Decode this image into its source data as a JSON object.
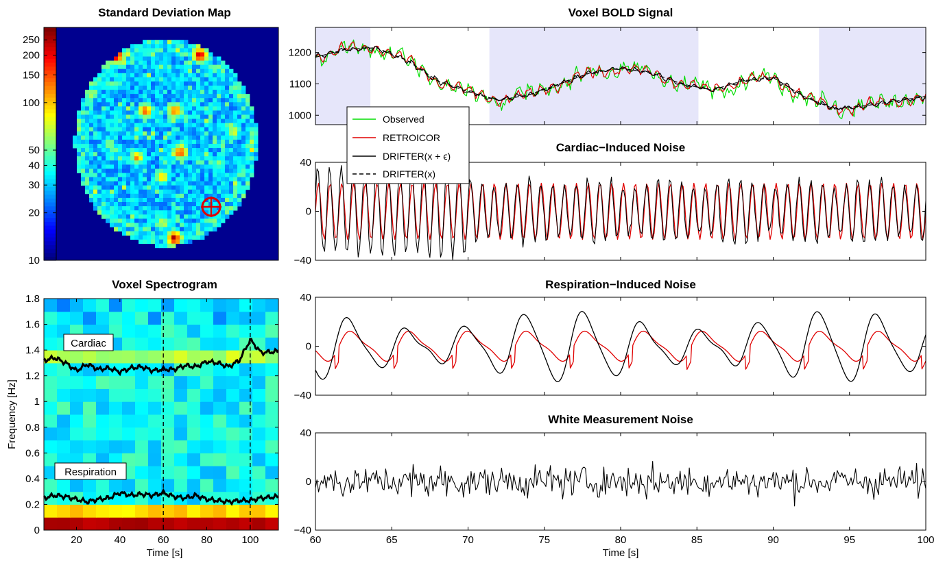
{
  "chart_data": [
    {
      "id": "stdmap",
      "type": "heatmap",
      "title": "Standard Deviation Map",
      "colorbar": {
        "scale": "log",
        "ticks": [
          10,
          20,
          30,
          40,
          50,
          100,
          150,
          200,
          250
        ],
        "range": [
          10,
          300
        ]
      },
      "marker": "circle-crosshair",
      "colors": {
        "background": "#00008f",
        "marker": "#e00000"
      }
    },
    {
      "id": "spectro",
      "type": "heatmap",
      "title": "Voxel Spectrogram",
      "xlabel": "Time [s]",
      "ylabel": "Frequency [Hz]",
      "xlim": [
        5,
        113
      ],
      "ylim": [
        0,
        1.8
      ],
      "xticks": [
        20,
        40,
        60,
        80,
        100
      ],
      "yticks": [
        0,
        0.2,
        0.4,
        0.6,
        0.8,
        1,
        1.2,
        1.4,
        1.6,
        1.8
      ],
      "vlines": [
        60,
        100
      ],
      "annotations": [
        "Cardiac",
        "Respiration"
      ],
      "cardiac_track": {
        "x": [
          5,
          10,
          15,
          20,
          25,
          30,
          35,
          40,
          45,
          50,
          55,
          60,
          65,
          70,
          75,
          80,
          85,
          90,
          95,
          100,
          105,
          113
        ],
        "y": [
          1.32,
          1.34,
          1.3,
          1.24,
          1.29,
          1.25,
          1.26,
          1.23,
          1.26,
          1.27,
          1.24,
          1.25,
          1.25,
          1.28,
          1.27,
          1.31,
          1.3,
          1.27,
          1.32,
          1.48,
          1.38,
          1.39
        ]
      },
      "respiration_track": {
        "x": [
          5,
          10,
          15,
          20,
          25,
          30,
          35,
          40,
          45,
          50,
          55,
          60,
          65,
          70,
          75,
          80,
          85,
          90,
          95,
          100,
          105,
          113
        ],
        "y": [
          0.25,
          0.27,
          0.26,
          0.24,
          0.22,
          0.24,
          0.25,
          0.29,
          0.27,
          0.28,
          0.27,
          0.29,
          0.26,
          0.25,
          0.27,
          0.24,
          0.23,
          0.22,
          0.23,
          0.23,
          0.25,
          0.26
        ]
      }
    },
    {
      "id": "bold",
      "type": "line",
      "title": "Voxel BOLD Signal",
      "xlim": [
        60,
        100
      ],
      "ylim": [
        970,
        1280
      ],
      "yticks": [
        1000,
        1100,
        1200
      ],
      "shaded": [
        [
          60,
          63.6
        ],
        [
          71.4,
          85.1
        ],
        [
          93,
          100
        ]
      ],
      "series": [
        {
          "name": "Observed",
          "color": "#00dd00"
        },
        {
          "name": "RETROICOR",
          "color": "#e00000"
        },
        {
          "name": "DRIFTER(x + ϵ)",
          "color": "#000000"
        },
        {
          "name": "DRIFTER(x)",
          "color": "#000000",
          "dash": true
        }
      ],
      "trend": {
        "x": [
          60,
          62,
          64,
          66,
          68,
          70,
          72,
          74,
          76,
          78,
          80,
          82,
          84,
          86,
          88,
          90,
          92,
          94,
          96,
          98,
          100
        ],
        "y": [
          1185,
          1210,
          1215,
          1175,
          1110,
          1075,
          1048,
          1065,
          1100,
          1135,
          1150,
          1135,
          1100,
          1080,
          1110,
          1120,
          1060,
          1020,
          1030,
          1045,
          1060
        ]
      }
    },
    {
      "id": "cardiac",
      "type": "line",
      "title": "Cardiac−Induced Noise",
      "xlim": [
        60,
        100
      ],
      "ylim": [
        -40,
        40
      ],
      "yticks": [
        -40,
        0,
        40
      ],
      "series": [
        {
          "name": "RETROICOR",
          "color": "#e00000",
          "amplitude": 23,
          "frequency_hz": 1.3
        },
        {
          "name": "DRIFTER",
          "color": "#000000",
          "amplitude_range": [
            15,
            40
          ],
          "frequency_hz": 1.3
        }
      ]
    },
    {
      "id": "resp",
      "type": "line",
      "title": "Respiration−Induced Noise",
      "xlim": [
        60,
        100
      ],
      "ylim": [
        -40,
        40
      ],
      "yticks": [
        -40,
        0,
        40
      ],
      "series": [
        {
          "name": "RETROICOR",
          "color": "#e00000",
          "amplitude": 12,
          "frequency_hz": 0.26
        },
        {
          "name": "DRIFTER",
          "color": "#000000",
          "amplitude": 22,
          "frequency_hz": 0.26
        }
      ]
    },
    {
      "id": "white",
      "type": "line",
      "title": "White Measurement Noise",
      "xlabel": "Time [s]",
      "xlim": [
        60,
        100
      ],
      "ylim": [
        -40,
        40
      ],
      "yticks": [
        -40,
        0,
        40
      ],
      "xticks": [
        60,
        65,
        70,
        75,
        80,
        85,
        90,
        95,
        100
      ],
      "series": [
        {
          "name": "DRIFTER",
          "color": "#000000",
          "std": 9
        }
      ]
    }
  ]
}
